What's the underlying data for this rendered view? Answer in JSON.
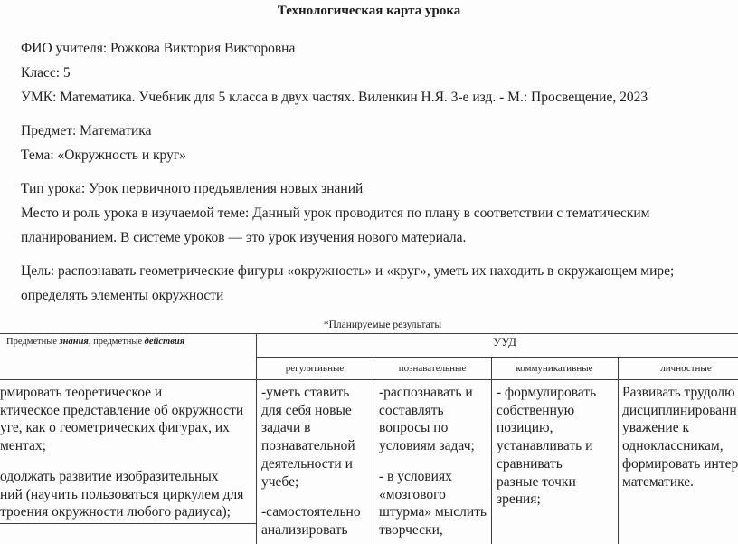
{
  "doc": {
    "title": "Технологическая карта урока",
    "info_lines": [
      "ФИО учителя: Рожкова Виктория Викторовна",
      "Класс: 5",
      "УМК: Математика. Учебник для 5 класса в двух частях. Виленкин Н.Я.  3-е изд. - М.: Просвещение, 2023",
      "Предмет: Математика",
      "Тема: «Окружность и круг»",
      "Тип урока: Урок первичного предъявления новых знаний",
      "Место и роль урока в изучаемой теме: Данный урок проводится по плану в соответствии с тематическим",
      "планированием. В системе уроков — это урок изучения нового материала.",
      "Цель: распознавать геометрические фигуры «окружность» и «круг», уметь их находить в окружающем мире;",
      "определять элементы окружности"
    ]
  },
  "results_table": {
    "caption": "*Планируемые результаты",
    "col1_header": {
      "n1": "Предметные ",
      "e1": "знания",
      "n2": ", предметные ",
      "e2": "действия"
    },
    "uud_label": "УУД",
    "subheaders": [
      "регулятивные",
      "познавательные",
      "коммуникативные",
      "личностные"
    ],
    "cells": {
      "subject_paras": [
        [
          "рмировать теоретическое и",
          "ктическое представление об окружности",
          "уге, как о геометрических фигурах, их",
          "ментах;"
        ],
        [
          "одолжать развитие изобразительных",
          "ний (научить пользоваться циркулем для",
          "троения окружности любого радиуса);"
        ]
      ],
      "regulative_paras": [
        [
          "-уметь ставить",
          "для себя новые",
          "задачи в",
          "познавательной",
          "деятельности и",
          "учебе;"
        ],
        [
          "-самостоятельно",
          "анализировать"
        ]
      ],
      "cognitive_paras": [
        [
          "-распознавать и",
          "составлять",
          "вопросы по",
          "условиям задач;"
        ],
        [
          "- в условиях",
          "«мозгового",
          "штурма» мыслить",
          "творчески,"
        ]
      ],
      "communicative_paras": [
        [
          "- формулировать",
          "собственную",
          "позицию,",
          "устанавливать и",
          "сравнивать",
          "разные точки",
          "зрения;"
        ]
      ],
      "personal_paras": [
        [
          "Развивать трудолю",
          "дисциплинированн",
          "уважение к",
          "одноклассникам,",
          "формировать интер",
          "математике."
        ]
      ]
    }
  },
  "colors": {
    "text": "#1f1f1f",
    "border": "#3f3f3f",
    "background": "#ffffff"
  }
}
